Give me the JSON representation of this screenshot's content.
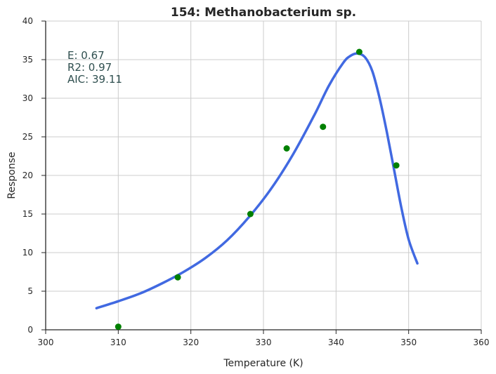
{
  "chart_data": {
    "type": "scatter",
    "title": "154: Methanobacterium sp.",
    "xlabel": "Temperature (K)",
    "ylabel": "Response",
    "xlim": [
      300,
      360
    ],
    "ylim": [
      0,
      40
    ],
    "x_ticks": [
      300,
      310,
      320,
      330,
      340,
      350,
      360
    ],
    "y_ticks": [
      0,
      5,
      10,
      15,
      20,
      25,
      30,
      35,
      40
    ],
    "grid": true,
    "colors": {
      "points": "#008000",
      "fit": "#4169e1",
      "annotation": "#2f4f4f",
      "grid": "#cccccc"
    },
    "series": [
      {
        "kind": "points",
        "x": [
          310.0,
          318.2,
          328.2,
          333.2,
          338.2,
          343.2,
          348.3
        ],
        "y": [
          0.4,
          6.8,
          15.0,
          23.5,
          26.3,
          36.0,
          21.3
        ]
      },
      {
        "kind": "fit-curve",
        "x": [
          307,
          310,
          313,
          316,
          319,
          322,
          325,
          328,
          331,
          334,
          337,
          339,
          341,
          342,
          343,
          344,
          345,
          346,
          347,
          348,
          349,
          350,
          351.2
        ],
        "y": [
          2.8,
          3.7,
          4.7,
          6.0,
          7.5,
          9.3,
          11.6,
          14.6,
          18.2,
          22.6,
          27.8,
          31.6,
          34.6,
          35.5,
          35.8,
          35.3,
          33.5,
          30.0,
          25.6,
          20.7,
          15.8,
          11.7,
          8.6
        ]
      }
    ],
    "annotations": [
      "E:  0.67",
      "R2:  0.97",
      "AIC: 39.11"
    ]
  }
}
